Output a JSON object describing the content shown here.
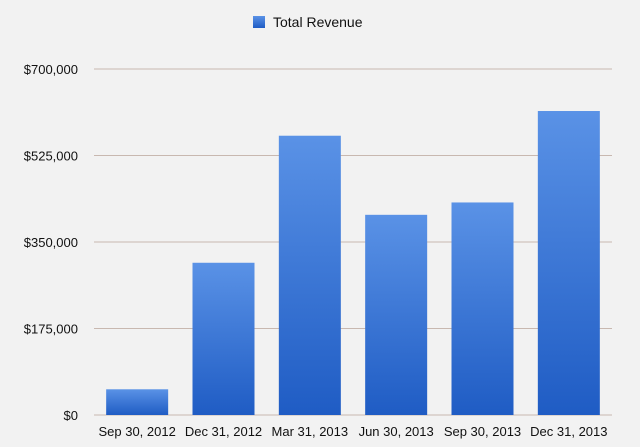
{
  "chart_data": {
    "type": "bar",
    "title": "",
    "xlabel": "",
    "ylabel": "",
    "categories": [
      "Sep 30, 2012",
      "Dec 31, 2012",
      "Mar 31, 2013",
      "Jun 30, 2013",
      "Sep 30, 2013",
      "Dec 31, 2013"
    ],
    "series": [
      {
        "name": "Total Revenue",
        "values": [
          52000,
          308000,
          565000,
          405000,
          430000,
          615000
        ]
      }
    ],
    "ylim": [
      0,
      700000
    ],
    "y_ticks": [
      "$0",
      "$175,000",
      "$350,000",
      "$525,000",
      "$700,000"
    ],
    "y_tick_values": [
      0,
      175000,
      350000,
      525000,
      700000
    ],
    "grid": true,
    "legend_position": "top-center",
    "colors": {
      "bar_top": "#5a92e6",
      "bar_bottom": "#1f5cc4",
      "background": "#f2f2f2",
      "gridline": "#c8b8b0"
    }
  }
}
